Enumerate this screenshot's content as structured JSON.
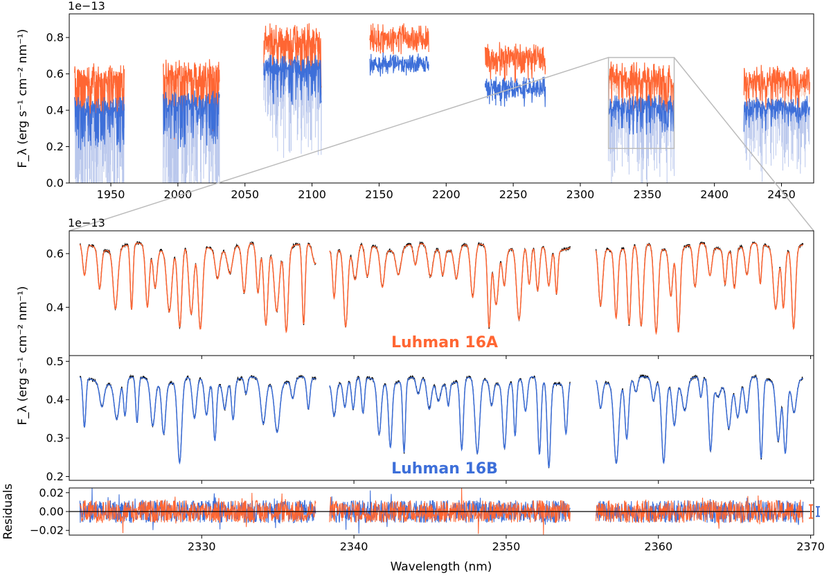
{
  "colors": {
    "A": "#ff6633",
    "B": "#3d6fd9",
    "model": "#000000",
    "light_A": "#f7c9b5",
    "light_B": "#b9c7ec",
    "gray_box": "#bbbbbb"
  },
  "chart_data": [
    {
      "id": "top",
      "type": "line",
      "title": "",
      "xlabel": "",
      "ylabel": "F_λ (erg s⁻¹ cm⁻² nm⁻¹)",
      "multiplier": "1e−13",
      "xlim": [
        1919,
        2474
      ],
      "ylim": [
        0.0,
        0.93
      ],
      "xticks": [
        "1950",
        "2000",
        "2050",
        "2100",
        "2150",
        "2200",
        "2250",
        "2300",
        "2350",
        "2400",
        "2450"
      ],
      "yticks": [
        "0.0",
        "0.2",
        "0.4",
        "0.6",
        "0.8"
      ],
      "orders": [
        {
          "range": [
            1923,
            1960
          ],
          "A_level": 0.58,
          "B_level": 0.42,
          "dip": 0.55
        },
        {
          "range": [
            1989,
            2031
          ],
          "A_level": 0.6,
          "B_level": 0.45,
          "dip": 0.55
        },
        {
          "range": [
            2064,
            2107
          ],
          "A_level": 0.8,
          "B_level": 0.65,
          "dip": 0.35
        },
        {
          "range": [
            2143,
            2187
          ],
          "A_level": 0.8,
          "B_level": 0.66,
          "dip": 0.08
        },
        {
          "range": [
            2229,
            2274
          ],
          "A_level": 0.7,
          "B_level": 0.53,
          "dip": 0.18
        },
        {
          "range": [
            2321,
            2370
          ],
          "A_level": 0.59,
          "B_level": 0.43,
          "dip": 0.35
        },
        {
          "range": [
            2422,
            2471
          ],
          "A_level": 0.57,
          "B_level": 0.42,
          "dip": 0.3
        }
      ],
      "zoom_box": {
        "x": [
          2321,
          2370
        ],
        "y": [
          0.19,
          0.69
        ]
      }
    },
    {
      "id": "mid_A",
      "type": "line",
      "label": "Luhman 16A",
      "ylabel": "F_λ (erg s⁻¹ cm⁻² nm⁻¹)",
      "multiplier": "1e−13",
      "xlim": [
        2321.3,
        2370.2
      ],
      "ylim": [
        0.22,
        0.685
      ],
      "yticks": [
        "0.4",
        "0.6"
      ],
      "segments": [
        [
          2322.0,
          2337.5
        ],
        [
          2338.4,
          2354.2
        ],
        [
          2355.9,
          2369.5
        ]
      ],
      "continuum": 0.625,
      "series": [
        {
          "name": "Luhman 16A data",
          "color_key": "A"
        },
        {
          "name": "Model",
          "color_key": "model"
        }
      ]
    },
    {
      "id": "mid_B",
      "type": "line",
      "label": "Luhman 16B",
      "xlim": [
        2321.3,
        2370.2
      ],
      "ylim": [
        0.19,
        0.515
      ],
      "yticks": [
        "0.2",
        "0.3",
        "0.4",
        "0.5"
      ],
      "segments": [
        [
          2322.0,
          2337.5
        ],
        [
          2338.4,
          2354.2
        ],
        [
          2355.9,
          2369.5
        ]
      ],
      "continuum": 0.45,
      "series": [
        {
          "name": "Luhman 16B data",
          "color_key": "B"
        },
        {
          "name": "Model",
          "color_key": "model"
        }
      ]
    },
    {
      "id": "resid",
      "type": "line",
      "ylabel": "Residuals",
      "xlabel": "Wavelength (nm)",
      "xlim": [
        2321.3,
        2370.2
      ],
      "ylim": [
        -0.025,
        0.025
      ],
      "xticks": [
        "2330",
        "2340",
        "2350",
        "2360",
        "2370"
      ],
      "yticks": [
        "0.02",
        "0.00",
        "−0.02"
      ],
      "segments": [
        [
          2322.0,
          2337.5
        ],
        [
          2338.4,
          2354.2
        ],
        [
          2355.9,
          2369.5
        ]
      ],
      "errorbars": {
        "A": 0.007,
        "B": 0.005
      }
    }
  ]
}
